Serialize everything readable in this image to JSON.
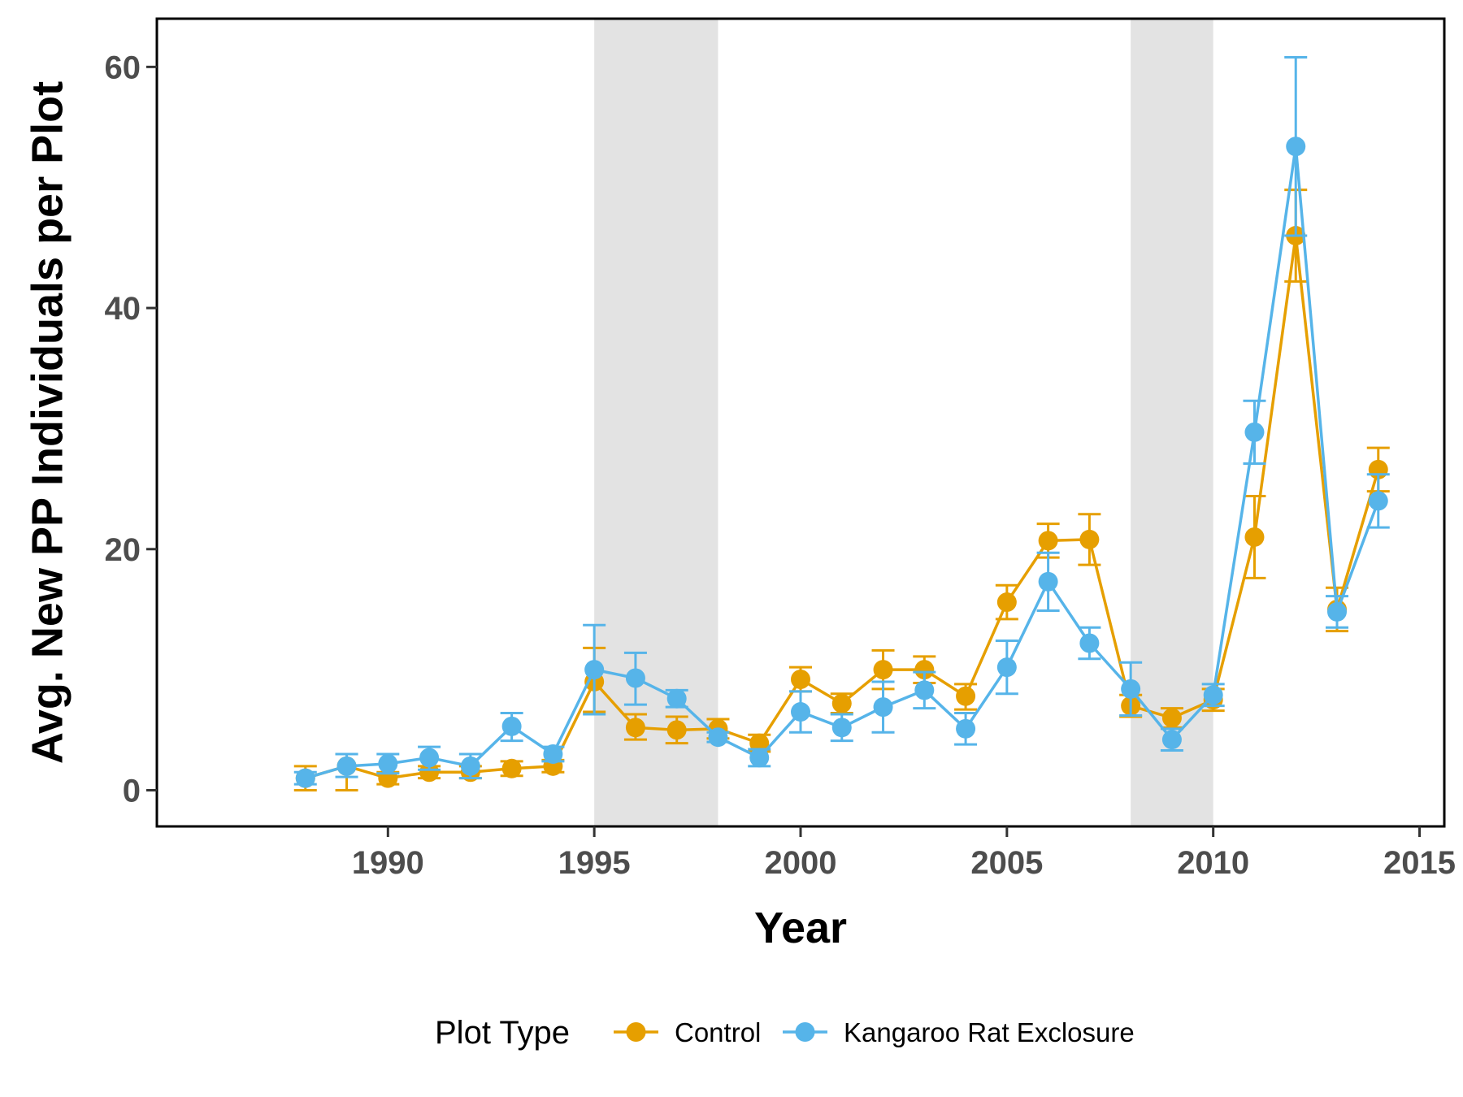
{
  "chart_data": {
    "type": "line",
    "xlabel": "Year",
    "ylabel": "Avg. New PP Individuals per Plot",
    "xlim": [
      1984.4,
      2015.6
    ],
    "ylim": [
      -3,
      64
    ],
    "x_ticks": [
      1990,
      1995,
      2000,
      2005,
      2010,
      2015
    ],
    "y_ticks": [
      0,
      20,
      40,
      60
    ],
    "grid": false,
    "shaded_periods": [
      [
        1995,
        1998
      ],
      [
        2008,
        2010
      ]
    ],
    "legend": {
      "title": "Plot Type",
      "position": "bottom",
      "entries": [
        "Control",
        "Kangaroo Rat Exclosure"
      ]
    },
    "series": [
      {
        "name": "Control",
        "color": "#E69F00",
        "points": [
          {
            "x": 1988,
            "y": 1.0,
            "lo": 0.0,
            "hi": 2.0
          },
          {
            "x": 1989,
            "y": 2.0,
            "lo": 0.0,
            "hi": 3.0
          },
          {
            "x": 1990,
            "y": 1.0,
            "lo": 0.5,
            "hi": 1.5
          },
          {
            "x": 1991,
            "y": 1.5,
            "lo": 1.0,
            "hi": 2.0
          },
          {
            "x": 1992,
            "y": 1.5,
            "lo": 1.0,
            "hi": 2.0
          },
          {
            "x": 1993,
            "y": 1.8,
            "lo": 1.2,
            "hi": 2.4
          },
          {
            "x": 1994,
            "y": 2.0,
            "lo": 1.5,
            "hi": 2.5
          },
          {
            "x": 1995,
            "y": 9.0,
            "lo": 6.5,
            "hi": 11.8
          },
          {
            "x": 1996,
            "y": 5.2,
            "lo": 4.2,
            "hi": 6.3
          },
          {
            "x": 1997,
            "y": 5.0,
            "lo": 3.9,
            "hi": 6.1
          },
          {
            "x": 1998,
            "y": 5.1,
            "lo": 4.3,
            "hi": 5.9
          },
          {
            "x": 1999,
            "y": 3.9,
            "lo": 3.2,
            "hi": 4.6
          },
          {
            "x": 2000,
            "y": 9.2,
            "lo": 8.2,
            "hi": 10.2
          },
          {
            "x": 2001,
            "y": 7.2,
            "lo": 6.4,
            "hi": 8.0
          },
          {
            "x": 2002,
            "y": 10.0,
            "lo": 8.4,
            "hi": 11.6
          },
          {
            "x": 2003,
            "y": 10.0,
            "lo": 8.9,
            "hi": 11.1
          },
          {
            "x": 2004,
            "y": 7.8,
            "lo": 6.7,
            "hi": 8.8
          },
          {
            "x": 2005,
            "y": 15.6,
            "lo": 14.2,
            "hi": 17.0
          },
          {
            "x": 2006,
            "y": 20.7,
            "lo": 19.3,
            "hi": 22.1
          },
          {
            "x": 2007,
            "y": 20.8,
            "lo": 18.7,
            "hi": 22.9
          },
          {
            "x": 2008,
            "y": 7.0,
            "lo": 6.1,
            "hi": 7.9
          },
          {
            "x": 2009,
            "y": 6.0,
            "lo": 5.2,
            "hi": 6.8
          },
          {
            "x": 2010,
            "y": 7.5,
            "lo": 6.6,
            "hi": 8.4
          },
          {
            "x": 2011,
            "y": 21.0,
            "lo": 17.6,
            "hi": 24.4
          },
          {
            "x": 2012,
            "y": 46.0,
            "lo": 42.2,
            "hi": 49.8
          },
          {
            "x": 2013,
            "y": 15.0,
            "lo": 13.2,
            "hi": 16.8
          },
          {
            "x": 2014,
            "y": 26.6,
            "lo": 24.8,
            "hi": 28.4
          }
        ]
      },
      {
        "name": "Kangaroo Rat Exclosure",
        "color": "#56B4E9",
        "points": [
          {
            "x": 1988,
            "y": 1.0,
            "lo": 0.5,
            "hi": 1.5
          },
          {
            "x": 1989,
            "y": 2.0,
            "lo": 1.1,
            "hi": 3.0
          },
          {
            "x": 1990,
            "y": 2.2,
            "lo": 1.4,
            "hi": 3.0
          },
          {
            "x": 1991,
            "y": 2.7,
            "lo": 1.7,
            "hi": 3.6
          },
          {
            "x": 1992,
            "y": 2.0,
            "lo": 1.0,
            "hi": 3.0
          },
          {
            "x": 1993,
            "y": 5.3,
            "lo": 4.1,
            "hi": 6.4
          },
          {
            "x": 1994,
            "y": 3.0,
            "lo": 2.4,
            "hi": 3.6
          },
          {
            "x": 1995,
            "y": 10.0,
            "lo": 6.3,
            "hi": 13.7
          },
          {
            "x": 1996,
            "y": 9.3,
            "lo": 7.1,
            "hi": 11.4
          },
          {
            "x": 1997,
            "y": 7.6,
            "lo": 6.9,
            "hi": 8.3
          },
          {
            "x": 1998,
            "y": 4.4,
            "lo": 4.0,
            "hi": 4.8
          },
          {
            "x": 1999,
            "y": 2.7,
            "lo": 2.0,
            "hi": 3.4
          },
          {
            "x": 2000,
            "y": 6.5,
            "lo": 4.8,
            "hi": 8.2
          },
          {
            "x": 2001,
            "y": 5.2,
            "lo": 4.1,
            "hi": 6.3
          },
          {
            "x": 2002,
            "y": 6.9,
            "lo": 4.8,
            "hi": 9.0
          },
          {
            "x": 2003,
            "y": 8.3,
            "lo": 6.8,
            "hi": 9.8
          },
          {
            "x": 2004,
            "y": 5.1,
            "lo": 3.8,
            "hi": 6.4
          },
          {
            "x": 2005,
            "y": 10.2,
            "lo": 8.0,
            "hi": 12.4
          },
          {
            "x": 2006,
            "y": 17.3,
            "lo": 14.9,
            "hi": 19.7
          },
          {
            "x": 2007,
            "y": 12.2,
            "lo": 10.9,
            "hi": 13.5
          },
          {
            "x": 2008,
            "y": 8.4,
            "lo": 6.2,
            "hi": 10.6
          },
          {
            "x": 2009,
            "y": 4.2,
            "lo": 3.3,
            "hi": 5.1
          },
          {
            "x": 2010,
            "y": 7.9,
            "lo": 7.0,
            "hi": 8.8
          },
          {
            "x": 2011,
            "y": 29.7,
            "lo": 27.1,
            "hi": 32.3
          },
          {
            "x": 2012,
            "y": 53.4,
            "lo": 46.0,
            "hi": 60.8
          },
          {
            "x": 2013,
            "y": 14.8,
            "lo": 13.5,
            "hi": 16.1
          },
          {
            "x": 2014,
            "y": 24.0,
            "lo": 21.8,
            "hi": 26.2
          }
        ]
      }
    ]
  }
}
